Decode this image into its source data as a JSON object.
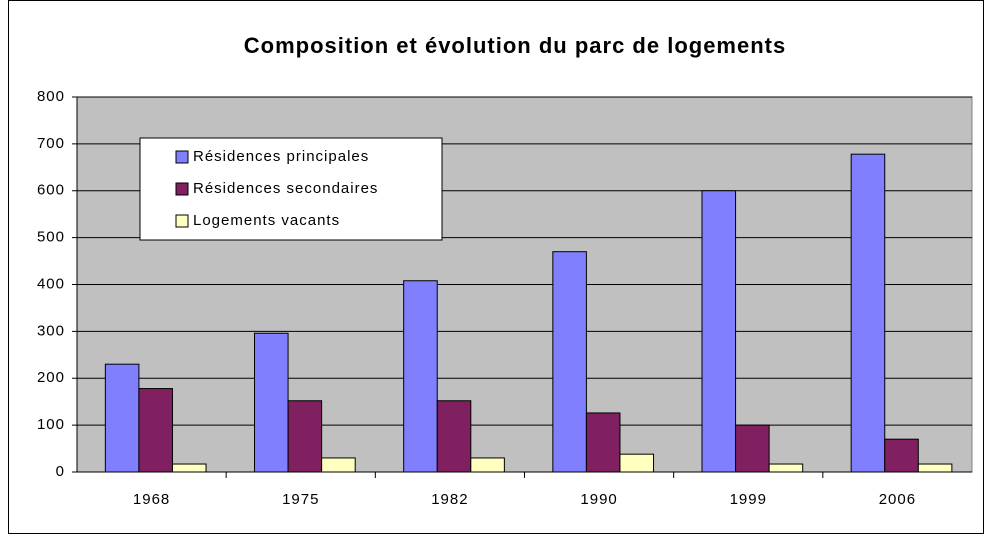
{
  "chart_data": {
    "type": "bar",
    "title": "Composition et évolution du parc de logements",
    "categories": [
      "1968",
      "1975",
      "1982",
      "1990",
      "1999",
      "2006"
    ],
    "series": [
      {
        "name": "Résidences principales",
        "color": "#8080ff",
        "values": [
          230,
          296,
          408,
          470,
          600,
          678
        ]
      },
      {
        "name": "Résidences secondaires",
        "color": "#802060",
        "values": [
          178,
          152,
          152,
          126,
          100,
          70
        ]
      },
      {
        "name": "Logements vacants",
        "color": "#ffffc0",
        "values": [
          17,
          30,
          30,
          38,
          17,
          17
        ]
      }
    ],
    "ylim": [
      0,
      800
    ],
    "yticks": [
      0,
      100,
      200,
      300,
      400,
      500,
      600,
      700,
      800
    ],
    "grid": true,
    "legend": "top-left",
    "background": "#c0c0c0"
  }
}
